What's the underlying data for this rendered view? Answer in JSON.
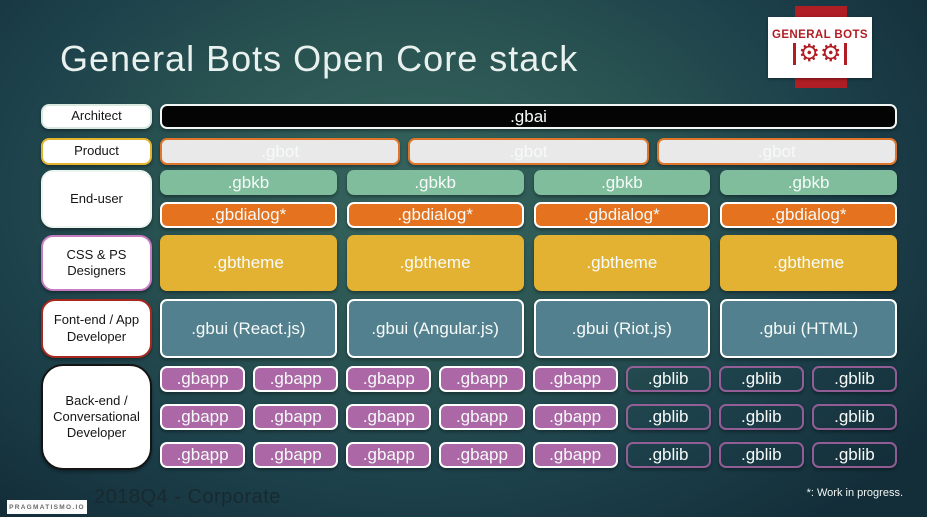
{
  "title": "General Bots Open Core stack",
  "logo": {
    "text": "GENERAL BOTS"
  },
  "left_labels": [
    {
      "label": "Architect"
    },
    {
      "label": "Product"
    },
    {
      "label": "End-user"
    },
    {
      "label": "CSS & PS Designers"
    },
    {
      "label": "Font-end / App Developer"
    },
    {
      "label": "Back-end / Conversational Developer"
    }
  ],
  "stack": {
    "gbai": ".gbai",
    "gbot": [
      ".gbot",
      ".gbot",
      ".gbot"
    ],
    "gbkb": [
      ".gbkb",
      ".gbkb",
      ".gbkb",
      ".gbkb"
    ],
    "gbdialog": [
      ".gbdialog*",
      ".gbdialog*",
      ".gbdialog*",
      ".gbdialog*"
    ],
    "gbtheme": [
      ".gbtheme",
      ".gbtheme",
      ".gbtheme",
      ".gbtheme"
    ],
    "gbui": [
      ".gbui (React.js)",
      ".gbui (Angular.js)",
      ".gbui (Riot.js)",
      ".gbui (HTML)"
    ],
    "gbapp_rows": [
      [
        ".gbapp",
        ".gbapp",
        ".gbapp",
        ".gbapp",
        ".gbapp"
      ],
      [
        ".gbapp",
        ".gbapp",
        ".gbapp",
        ".gbapp",
        ".gbapp"
      ],
      [
        ".gbapp",
        ".gbapp",
        ".gbapp",
        ".gbapp",
        ".gbapp"
      ]
    ],
    "gblib_rows": [
      [
        ".gblib",
        ".gblib",
        ".gblib"
      ],
      [
        ".gblib",
        ".gblib",
        ".gblib"
      ],
      [
        ".gblib",
        ".gblib",
        ".gblib"
      ]
    ]
  },
  "footer": {
    "brand": "PRAGMATISMO.IO",
    "edition": "2018Q4 - Corporate",
    "note": "*: Work in progress."
  },
  "colors": {
    "background_center": "#37655F",
    "background_edge": "#132E39",
    "gbai_bg": "#040404",
    "gbot_bg": "#E9E9E9",
    "gbot_border": "#DE752B",
    "gbkb_bg": "#7FBD9D",
    "gbdialog_bg": "#E4721E",
    "gbtheme_bg": "#E4B233",
    "gbui_bg": "#53808F",
    "gbapp_bg": "#AC68A6",
    "gblib_accent": "#AE74AA",
    "logo_red": "#B01E24"
  }
}
